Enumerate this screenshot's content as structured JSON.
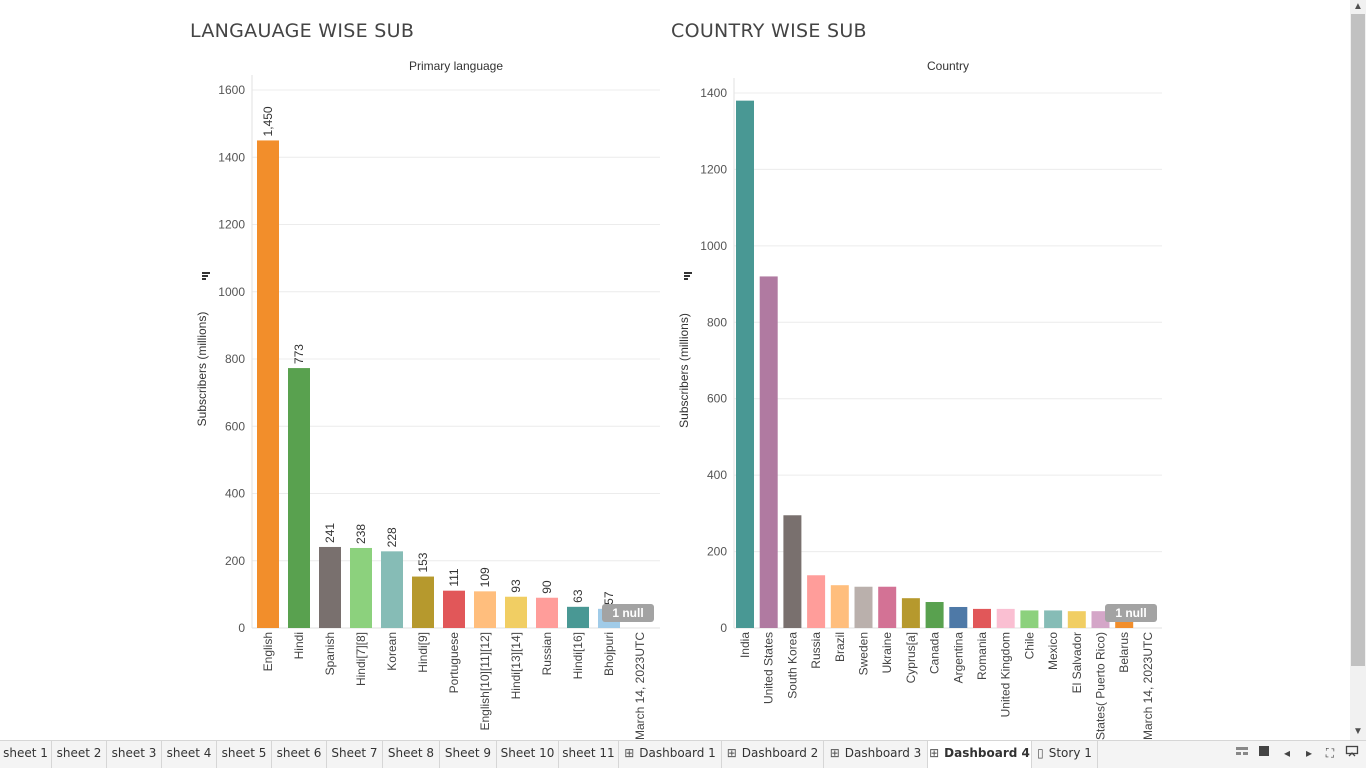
{
  "dashboard": {
    "left_title": "LANGAUAGE WISE SUB",
    "right_title": "COUNTRY WISE SUB"
  },
  "chart_data": [
    {
      "type": "bar",
      "title": "Primary language",
      "ylabel": "Subscribers (millions)",
      "ylim": [
        0,
        1600
      ],
      "yticks": [
        0,
        200,
        400,
        600,
        800,
        1000,
        1200,
        1400,
        1600
      ],
      "categories": [
        "English",
        "Hindi",
        "Spanish",
        "Hindi[7][8]",
        "Korean",
        "Hindi[9]",
        "Portuguese",
        "English[10][11][12]",
        "Hindi[13][14]",
        "Russian",
        "Hindi[16]",
        "Bhojpuri",
        "March 14, 2023UTC"
      ],
      "values": [
        1450,
        773,
        241,
        238,
        228,
        153,
        111,
        109,
        93,
        90,
        63,
        57,
        null
      ],
      "labels": [
        "1,450",
        "773",
        "241",
        "238",
        "228",
        "153",
        "111",
        "109",
        "93",
        "90",
        "63",
        "57",
        ""
      ],
      "colors": [
        "#f28e2b",
        "#59a14f",
        "#79706e",
        "#8cd17d",
        "#86bcb6",
        "#b6992d",
        "#e15759",
        "#ffbe7d",
        "#f1ce63",
        "#ff9d9a",
        "#499894",
        "#a0cbe8",
        "#cccccc"
      ],
      "null_indicator": "1 null",
      "grid": true,
      "legend": "none"
    },
    {
      "type": "bar",
      "title": "Country",
      "ylabel": "Subscribers (millions)",
      "ylim": [
        0,
        1400
      ],
      "yticks": [
        0,
        200,
        400,
        600,
        800,
        1000,
        1200,
        1400
      ],
      "categories": [
        "India",
        "United States",
        "South Korea",
        "Russia",
        "Brazil",
        "Sweden",
        "Ukraine",
        "Cyprus[a]",
        "Canada",
        "Argentina",
        "Romania",
        "United Kingdom",
        "Chile",
        "Mexico",
        "El Salvador",
        "United States( Puerto Rico)",
        "Belarus",
        "March 14, 2023UTC"
      ],
      "values": [
        1380,
        920,
        295,
        138,
        112,
        108,
        108,
        78,
        68,
        55,
        50,
        50,
        46,
        46,
        44,
        44,
        30,
        null
      ],
      "colors": [
        "#499894",
        "#b07aa1",
        "#79706e",
        "#ff9d9a",
        "#ffbe7d",
        "#bab0ac",
        "#d37295",
        "#b6992d",
        "#59a14f",
        "#4e79a7",
        "#e15759",
        "#fabfd2",
        "#8cd17d",
        "#86bcb6",
        "#f1ce63",
        "#d4a6c8",
        "#f28e2b",
        "#cccccc"
      ],
      "null_indicator": "1 null",
      "grid": true,
      "legend": "none"
    }
  ],
  "tabs": [
    {
      "label": "sheet 1",
      "icon": ""
    },
    {
      "label": "sheet 2",
      "icon": ""
    },
    {
      "label": "sheet 3",
      "icon": ""
    },
    {
      "label": "sheet 4",
      "icon": ""
    },
    {
      "label": "sheet 5",
      "icon": ""
    },
    {
      "label": "sheet 6",
      "icon": ""
    },
    {
      "label": "Sheet 7",
      "icon": ""
    },
    {
      "label": "Sheet 8",
      "icon": ""
    },
    {
      "label": "Sheet 9",
      "icon": ""
    },
    {
      "label": "Sheet 10",
      "icon": ""
    },
    {
      "label": "sheet 11",
      "icon": ""
    },
    {
      "label": "Dashboard 1",
      "icon": "dashboard-icon"
    },
    {
      "label": "Dashboard 2",
      "icon": "dashboard-icon"
    },
    {
      "label": "Dashboard 3",
      "icon": "dashboard-icon"
    },
    {
      "label": "Dashboard 4",
      "icon": "dashboard-icon",
      "active": true
    },
    {
      "label": "Story 1",
      "icon": "story-icon"
    }
  ],
  "controls": [
    "show-filmstrip-icon",
    "show-tabs-icon",
    "previous-sheet-icon",
    "next-sheet-icon",
    "fullscreen-icon",
    "present-icon"
  ]
}
